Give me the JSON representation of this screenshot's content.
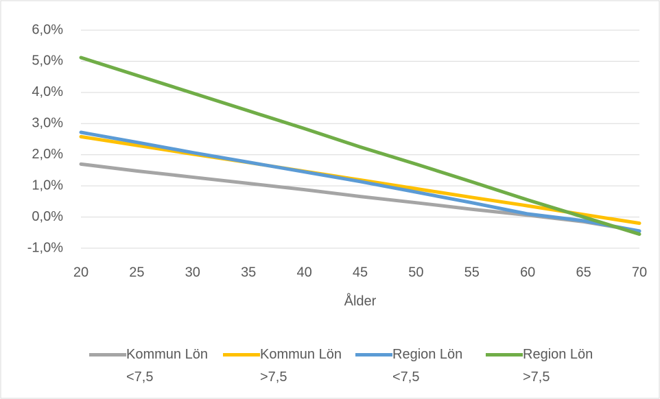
{
  "chart_data": {
    "type": "line",
    "xlabel": "Ålder",
    "x": [
      20,
      25,
      30,
      35,
      40,
      45,
      50,
      55,
      60,
      65,
      70
    ],
    "series": [
      {
        "name": "Kommun Lön <7,5",
        "color": "#a5a5a5",
        "values": [
          1.7,
          1.48,
          1.28,
          1.08,
          0.88,
          0.66,
          0.46,
          0.25,
          0.06,
          -0.15,
          -0.45
        ]
      },
      {
        "name": "Kommun Lön >7,5",
        "color": "#ffc000",
        "values": [
          2.58,
          2.3,
          2.02,
          1.75,
          1.47,
          1.19,
          0.91,
          0.63,
          0.36,
          0.08,
          -0.2
        ]
      },
      {
        "name": "Region Lön <7,5",
        "color": "#5b9bd5",
        "values": [
          2.72,
          2.4,
          2.07,
          1.76,
          1.45,
          1.14,
          0.8,
          0.46,
          0.1,
          -0.12,
          -0.45
        ]
      },
      {
        "name": "Region Lön >7,5",
        "color": "#70ad47",
        "values": [
          5.12,
          4.55,
          3.98,
          3.41,
          2.84,
          2.25,
          1.7,
          1.13,
          0.55,
          0.0,
          -0.55
        ]
      }
    ],
    "xlim": [
      20,
      70
    ],
    "xticks": [
      20,
      25,
      30,
      35,
      40,
      45,
      50,
      55,
      60,
      65,
      70
    ],
    "ylim": [
      -1,
      6
    ],
    "yticks": [
      {
        "value": -1,
        "label": "-1,0%"
      },
      {
        "value": 0,
        "label": "0,0%"
      },
      {
        "value": 1,
        "label": "1,0%"
      },
      {
        "value": 2,
        "label": "2,0%"
      },
      {
        "value": 3,
        "label": "3,0%"
      },
      {
        "value": 4,
        "label": "4,0%"
      },
      {
        "value": 5,
        "label": "5,0%"
      },
      {
        "value": 6,
        "label": "6,0%"
      }
    ],
    "grid": true,
    "legend": "bottom"
  }
}
